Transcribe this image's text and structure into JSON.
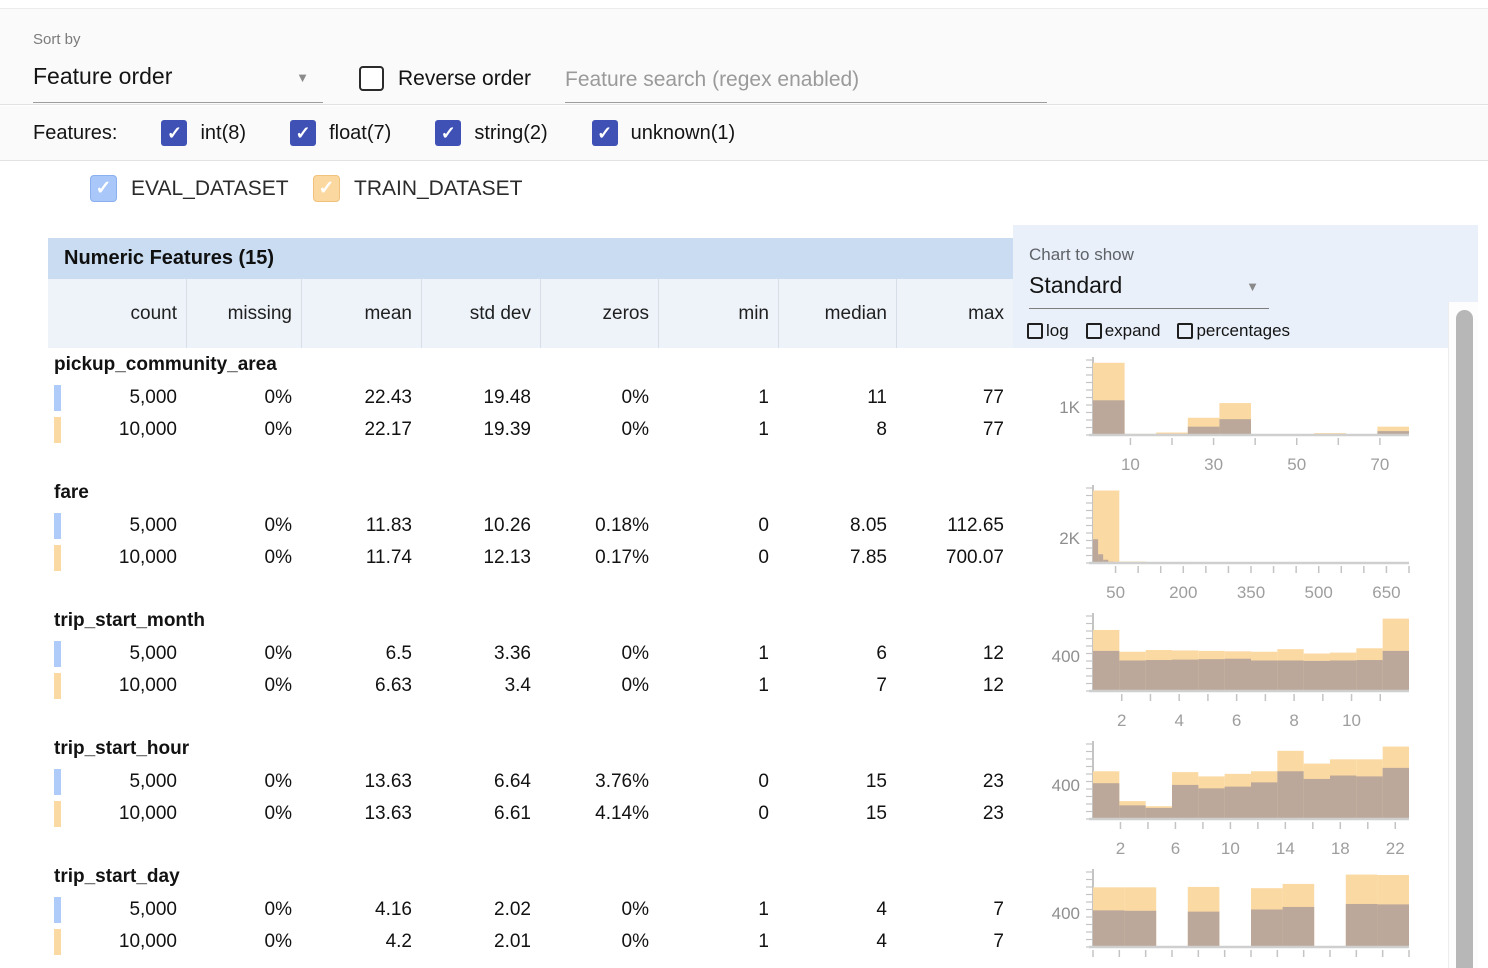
{
  "toolbar": {
    "sort_by_label": "Sort by",
    "sort_value": "Feature order",
    "reverse_label": "Reverse order",
    "search_placeholder": "Feature search (regex enabled)"
  },
  "filters": {
    "label": "Features:",
    "items": [
      {
        "label": "int(8)",
        "checked": true
      },
      {
        "label": "float(7)",
        "checked": true
      },
      {
        "label": "string(2)",
        "checked": true
      },
      {
        "label": "unknown(1)",
        "checked": true
      }
    ]
  },
  "legend": {
    "eval": {
      "label": "EVAL_DATASET",
      "color": "#aecbfa",
      "checked": true
    },
    "train": {
      "label": "TRAIN_DATASET",
      "color": "#fad9a2",
      "checked": true
    }
  },
  "table": {
    "title": "Numeric Features (15)",
    "columns": {
      "c0": "count",
      "c1": "missing",
      "c2": "mean",
      "c3": "std dev",
      "c4": "zeros",
      "c5": "min",
      "c6": "median",
      "c7": "max"
    }
  },
  "chart_controls": {
    "label": "Chart to show",
    "selected": "Standard",
    "log_label": "log",
    "expand_label": "expand",
    "percentages_label": "percentages"
  },
  "check_glyph": "✓",
  "colors": {
    "eval_blue": "#aecbfa",
    "train_orange": "#fad9a2",
    "overlap_brown": "#bca89a",
    "filter_checkbox": "#3f51b5",
    "table_title_bg": "#c9dcf1",
    "header_row_bg": "#eef3fa",
    "chart_panel_bg": "#e9f0fa"
  },
  "features": [
    {
      "name": "pickup_community_area",
      "eval": {
        "count": "5,000",
        "missing": "0%",
        "mean": "22.43",
        "std_dev": "19.48",
        "zeros": "0%",
        "min": "1",
        "median": "11",
        "max": "77"
      },
      "train": {
        "count": "10,000",
        "missing": "0%",
        "mean": "22.17",
        "std_dev": "19.39",
        "zeros": "0%",
        "min": "1",
        "median": "8",
        "max": "77"
      }
    },
    {
      "name": "fare",
      "eval": {
        "count": "5,000",
        "missing": "0%",
        "mean": "11.83",
        "std_dev": "10.26",
        "zeros": "0.18%",
        "min": "0",
        "median": "8.05",
        "max": "112.65"
      },
      "train": {
        "count": "10,000",
        "missing": "0%",
        "mean": "11.74",
        "std_dev": "12.13",
        "zeros": "0.17%",
        "min": "0",
        "median": "7.85",
        "max": "700.07"
      }
    },
    {
      "name": "trip_start_month",
      "eval": {
        "count": "5,000",
        "missing": "0%",
        "mean": "6.5",
        "std_dev": "3.36",
        "zeros": "0%",
        "min": "1",
        "median": "6",
        "max": "12"
      },
      "train": {
        "count": "10,000",
        "missing": "0%",
        "mean": "6.63",
        "std_dev": "3.4",
        "zeros": "0%",
        "min": "1",
        "median": "7",
        "max": "12"
      }
    },
    {
      "name": "trip_start_hour",
      "eval": {
        "count": "5,000",
        "missing": "0%",
        "mean": "13.63",
        "std_dev": "6.64",
        "zeros": "3.76%",
        "min": "0",
        "median": "15",
        "max": "23"
      },
      "train": {
        "count": "10,000",
        "missing": "0%",
        "mean": "13.63",
        "std_dev": "6.61",
        "zeros": "4.14%",
        "min": "0",
        "median": "15",
        "max": "23"
      }
    },
    {
      "name": "trip_start_day",
      "eval": {
        "count": "5,000",
        "missing": "0%",
        "mean": "4.16",
        "std_dev": "2.02",
        "zeros": "0%",
        "min": "1",
        "median": "4",
        "max": "7"
      },
      "train": {
        "count": "10,000",
        "missing": "0%",
        "mean": "4.2",
        "std_dev": "2.01",
        "zeros": "0%",
        "min": "1",
        "median": "4",
        "max": "7"
      }
    }
  ],
  "chart_data": [
    {
      "type": "bar",
      "feature": "pickup_community_area",
      "xlim": [
        1,
        77
      ],
      "ymax": 2700,
      "ylabel": {
        "text": "1K",
        "value": 1000
      },
      "xticks": [
        10,
        20,
        30,
        40,
        50,
        60,
        70
      ],
      "xlabels": [
        [
          10,
          "10"
        ],
        [
          30,
          "30"
        ],
        [
          50,
          "50"
        ],
        [
          70,
          "70"
        ]
      ],
      "series": [
        {
          "name": "TRAIN_DATASET",
          "color": "#fbd9a3",
          "edges": [
            1,
            8.6,
            16.2,
            23.8,
            31.4,
            39,
            46.6,
            54.2,
            61.8,
            69.4,
            77
          ],
          "values": [
            2600,
            40,
            90,
            620,
            1150,
            15,
            15,
            70,
            15,
            300
          ]
        },
        {
          "name": "EVAL_DATASET_overlap",
          "color": "#bca89a",
          "edges": [
            1,
            8.6,
            16.2,
            23.8,
            31.4,
            39,
            46.6,
            54.2,
            61.8,
            69.4,
            77
          ],
          "values": [
            1250,
            20,
            40,
            300,
            570,
            8,
            8,
            30,
            8,
            140
          ]
        }
      ]
    },
    {
      "type": "bar",
      "feature": "fare",
      "xlim": [
        0,
        700
      ],
      "ymax": 6000,
      "ylabel": {
        "text": "2K",
        "value": 2000
      },
      "xticks": [
        50,
        100,
        150,
        200,
        250,
        300,
        350,
        400,
        450,
        500,
        550,
        600,
        650,
        700
      ],
      "xlabels": [
        [
          50,
          "50"
        ],
        [
          200,
          "200"
        ],
        [
          350,
          "350"
        ],
        [
          500,
          "500"
        ],
        [
          650,
          "650"
        ]
      ],
      "series": [
        {
          "name": "TRAIN_DATASET",
          "color": "#fbd9a3",
          "edges": [
            0,
            58.3,
            116.7,
            175,
            233.3,
            291.7,
            350,
            408.3,
            466.7,
            525,
            583.3,
            641.7,
            700
          ],
          "values": [
            5800,
            120,
            40,
            18,
            10,
            8,
            6,
            5,
            4,
            3,
            2,
            2
          ]
        },
        {
          "name": "EVAL_DATASET_overlap",
          "color": "#bca89a",
          "edges": [
            0,
            11.3,
            22.5,
            33.8,
            45.1,
            56.3,
            67.6,
            78.9,
            90.1,
            101.4,
            112.7
          ],
          "values": [
            1900,
            700,
            260,
            110,
            50,
            25,
            15,
            10,
            6,
            4
          ]
        }
      ]
    },
    {
      "type": "bar",
      "feature": "trip_start_month",
      "xlim": [
        1,
        12
      ],
      "ymax": 860,
      "ylabel": {
        "text": "400",
        "value": 400
      },
      "xticks": [
        2,
        3,
        4,
        5,
        6,
        7,
        8,
        9,
        10,
        11
      ],
      "xlabels": [
        [
          2,
          "2"
        ],
        [
          4,
          "4"
        ],
        [
          6,
          "6"
        ],
        [
          8,
          "8"
        ],
        [
          10,
          "10"
        ]
      ],
      "series": [
        {
          "name": "TRAIN_DATASET",
          "color": "#fbd9a3",
          "edges": [
            1,
            1.917,
            2.833,
            3.75,
            4.667,
            5.583,
            6.5,
            7.417,
            8.333,
            9.25,
            10.167,
            11.083,
            12
          ],
          "values": [
            700,
            450,
            470,
            465,
            460,
            455,
            450,
            480,
            430,
            440,
            490,
            830
          ]
        },
        {
          "name": "EVAL_DATASET_overlap",
          "color": "#bca89a",
          "edges": [
            1,
            1.917,
            2.833,
            3.75,
            4.667,
            5.583,
            6.5,
            7.417,
            8.333,
            9.25,
            10.167,
            11.083,
            12
          ],
          "values": [
            460,
            350,
            355,
            360,
            365,
            370,
            350,
            350,
            345,
            350,
            355,
            460
          ]
        }
      ]
    },
    {
      "type": "bar",
      "feature": "trip_start_hour",
      "xlim": [
        0,
        23
      ],
      "ymax": 880,
      "ylabel": {
        "text": "400",
        "value": 400
      },
      "xticks": [
        2,
        4,
        6,
        8,
        10,
        12,
        14,
        16,
        18,
        20,
        22
      ],
      "xlabels": [
        [
          2,
          "2"
        ],
        [
          6,
          "6"
        ],
        [
          10,
          "10"
        ],
        [
          14,
          "14"
        ],
        [
          18,
          "18"
        ],
        [
          22,
          "22"
        ]
      ],
      "series": [
        {
          "name": "TRAIN_DATASET",
          "color": "#fbd9a3",
          "edges": [
            0,
            1.917,
            3.833,
            5.75,
            7.667,
            9.583,
            11.5,
            13.417,
            15.333,
            17.25,
            19.167,
            21.083,
            23
          ],
          "values": [
            560,
            210,
            150,
            550,
            500,
            530,
            560,
            800,
            650,
            700,
            700,
            850
          ]
        },
        {
          "name": "EVAL_DATASET_overlap",
          "color": "#bca89a",
          "edges": [
            0,
            1.917,
            3.833,
            5.75,
            7.667,
            9.583,
            11.5,
            13.417,
            15.333,
            17.25,
            19.167,
            21.083,
            23
          ],
          "values": [
            420,
            160,
            130,
            400,
            360,
            380,
            430,
            560,
            470,
            510,
            500,
            600
          ]
        }
      ]
    },
    {
      "type": "bar",
      "feature": "trip_start_day",
      "xlim": [
        1,
        7
      ],
      "ymax": 880,
      "ylabel": {
        "text": "400",
        "value": 400
      },
      "xticks": [
        1,
        1.5,
        2,
        2.5,
        3,
        3.5,
        4,
        4.5,
        5,
        5.5,
        6,
        6.5,
        7
      ],
      "xlabels": [],
      "series": [
        {
          "name": "TRAIN_DATASET",
          "color": "#fbd9a3",
          "edges": [
            1,
            1.6,
            2.2,
            2.8,
            3.4,
            4.0,
            4.6,
            5.2,
            5.8,
            6.4,
            7.0
          ],
          "values": [
            700,
            700,
            0,
            705,
            0,
            690,
            740,
            0,
            850,
            845
          ]
        },
        {
          "name": "EVAL_DATASET_overlap",
          "color": "#bca89a",
          "edges": [
            1,
            1.6,
            2.2,
            2.8,
            3.4,
            4.0,
            4.6,
            5.2,
            5.8,
            6.4,
            7.0
          ],
          "values": [
            430,
            425,
            0,
            415,
            0,
            440,
            470,
            0,
            505,
            500
          ]
        }
      ]
    }
  ]
}
